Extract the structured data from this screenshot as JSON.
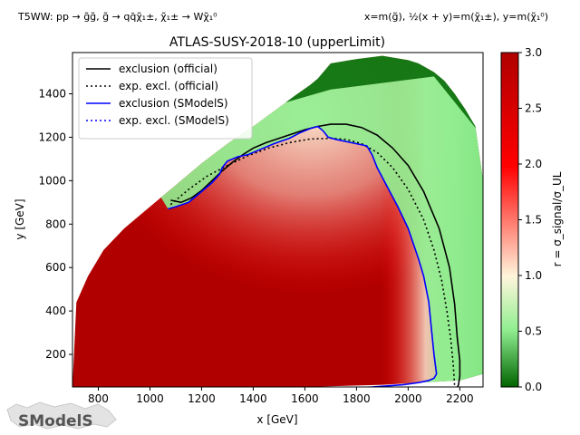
{
  "header": {
    "left_text": "T5WW: pp → g̃g̃, g̃ → qq̄χ̃₁±, χ̃₁± → Wχ̃₁⁰",
    "right_text": "x=m(g̃), ½(x + y)=m(χ̃₁±), y=m(χ̃₁⁰)"
  },
  "logo": {
    "text": "SModelS"
  },
  "chart_data": {
    "type": "heatmap",
    "title": "ATLAS-SUSY-2018-10 (upperLimit)",
    "xlabel": "x [GeV]",
    "ylabel": "y [GeV]",
    "xlim": [
      700,
      2290
    ],
    "ylim": [
      50,
      1590
    ],
    "xticks": [
      800,
      1000,
      1200,
      1400,
      1600,
      1800,
      2000,
      2200
    ],
    "yticks": [
      200,
      400,
      600,
      800,
      1000,
      1200,
      1400
    ],
    "colorbar": {
      "label": "r = σ_signal/σ_UL",
      "range": [
        0.0,
        3.0
      ],
      "ticks": [
        0.0,
        0.5,
        1.0,
        1.5,
        2.0,
        2.5,
        3.0
      ],
      "colormap": [
        "#006400",
        "#90ee90",
        "#fff5dc",
        "#ff0000",
        "#b00000"
      ]
    },
    "grid": false,
    "legend": {
      "placement": "top-left",
      "entries": [
        {
          "label": "exclusion (official)",
          "color": "#000000",
          "style": "solid"
        },
        {
          "label": "exp. excl. (official)",
          "color": "#000000",
          "style": "dotted"
        },
        {
          "label": "exclusion (SModelS)",
          "color": "#0000ff",
          "style": "solid"
        },
        {
          "label": "exp. excl. (SModelS)",
          "color": "#0000ff",
          "style": "dotted"
        }
      ]
    },
    "region_boundary": {
      "x": [
        700,
        715,
        760,
        820,
        900,
        980,
        1060,
        1100,
        1200,
        1300,
        1400,
        1480,
        1560,
        1620,
        1650,
        1700,
        1800,
        1900,
        2000,
        2040,
        2100,
        2140,
        2180,
        2220,
        2260,
        2290,
        2290,
        2200,
        1900,
        1600,
        1300,
        1000,
        700
      ],
      "y": [
        50,
        440,
        560,
        680,
        780,
        860,
        940,
        980,
        1080,
        1170,
        1250,
        1320,
        1390,
        1440,
        1470,
        1540,
        1560,
        1575,
        1555,
        1540,
        1500,
        1460,
        1400,
        1330,
        1250,
        1000,
        110,
        80,
        60,
        50,
        50,
        50,
        50
      ]
    },
    "series": [
      {
        "name": "exclusion (official)",
        "x": [
          1080,
          1120,
          1160,
          1200,
          1240,
          1280,
          1320,
          1360,
          1400,
          1450,
          1500,
          1550,
          1600,
          1650,
          1700,
          1760,
          1820,
          1880,
          1940,
          2000,
          2060,
          2120,
          2160,
          2180,
          2190,
          2200,
          2200,
          2195,
          2190
        ],
        "y": [
          910,
          900,
          920,
          955,
          1000,
          1045,
          1085,
          1120,
          1150,
          1175,
          1195,
          1215,
          1235,
          1250,
          1260,
          1260,
          1245,
          1210,
          1150,
          1070,
          950,
          780,
          600,
          430,
          280,
          170,
          100,
          60,
          45
        ]
      },
      {
        "name": "exp. excl. (official)",
        "x": [
          1080,
          1150,
          1220,
          1300,
          1380,
          1460,
          1540,
          1620,
          1700,
          1760,
          1820,
          1880,
          1940,
          2000,
          2060,
          2100,
          2130,
          2150,
          2165,
          2175,
          2180
        ],
        "y": [
          890,
          960,
          1020,
          1070,
          1115,
          1150,
          1175,
          1192,
          1195,
          1190,
          1170,
          1130,
          1060,
          960,
          820,
          680,
          540,
          400,
          270,
          150,
          50
        ]
      },
      {
        "name": "exclusion (SModelS)",
        "x": [
          1070,
          1100,
          1150,
          1180,
          1210,
          1240,
          1270,
          1280,
          1300,
          1340,
          1380,
          1420,
          1480,
          1540,
          1580,
          1620,
          1650,
          1670,
          1690,
          1720,
          1760,
          1800,
          1840,
          1860,
          1880,
          1920,
          1960,
          2000,
          2040,
          2060,
          2080,
          2090,
          2100,
          2110,
          2100,
          2080,
          2040,
          1980,
          1920,
          1860,
          1820,
          1790
        ],
        "y": [
          870,
          880,
          900,
          930,
          960,
          990,
          1030,
          1060,
          1090,
          1110,
          1120,
          1140,
          1170,
          1195,
          1220,
          1240,
          1250,
          1230,
          1200,
          1190,
          1180,
          1170,
          1160,
          1120,
          1060,
          970,
          880,
          780,
          640,
          560,
          440,
          320,
          200,
          110,
          90,
          80,
          70,
          60,
          55,
          50,
          48,
          46
        ]
      },
      {
        "name": "exp. excl. (SModelS)",
        "x": [],
        "y": []
      }
    ]
  }
}
